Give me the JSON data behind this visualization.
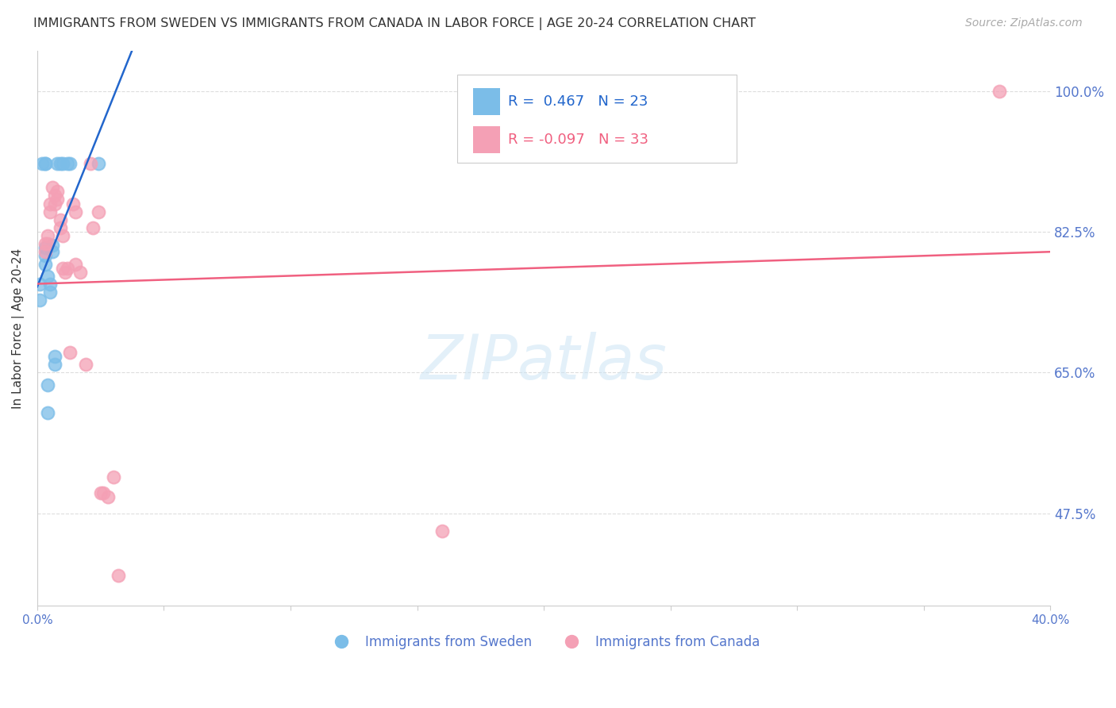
{
  "title": "IMMIGRANTS FROM SWEDEN VS IMMIGRANTS FROM CANADA IN LABOR FORCE | AGE 20-24 CORRELATION CHART",
  "source": "Source: ZipAtlas.com",
  "ylabel": "In Labor Force | Age 20-24",
  "sweden_R": 0.467,
  "sweden_N": 23,
  "canada_R": -0.097,
  "canada_N": 33,
  "sweden_color": "#7bbde8",
  "canada_color": "#f4a0b5",
  "sweden_line_color": "#2266cc",
  "canada_line_color": "#f06080",
  "legend_label_sweden": "Immigrants from Sweden",
  "legend_label_canada": "Immigrants from Canada",
  "xlim": [
    0.0,
    0.4
  ],
  "ylim": [
    0.36,
    1.05
  ],
  "yticks": [
    0.475,
    0.65,
    0.825,
    1.0
  ],
  "ytick_labels": [
    "47.5%",
    "65.0%",
    "82.5%",
    "100.0%"
  ],
  "xticks": [
    0.0,
    0.05,
    0.1,
    0.15,
    0.2,
    0.25,
    0.3,
    0.35,
    0.4
  ],
  "background_color": "#ffffff",
  "grid_color": "#dddddd",
  "axis_label_color": "#5577cc",
  "sweden_x": [
    0.001,
    0.001,
    0.002,
    0.003,
    0.003,
    0.003,
    0.003,
    0.003,
    0.004,
    0.004,
    0.004,
    0.005,
    0.005,
    0.006,
    0.006,
    0.007,
    0.007,
    0.008,
    0.009,
    0.01,
    0.012,
    0.013,
    0.024
  ],
  "sweden_y": [
    0.76,
    0.74,
    0.91,
    0.91,
    0.91,
    0.805,
    0.795,
    0.785,
    0.77,
    0.635,
    0.6,
    0.76,
    0.75,
    0.808,
    0.8,
    0.67,
    0.66,
    0.91,
    0.91,
    0.91,
    0.91,
    0.91,
    0.91
  ],
  "canada_x": [
    0.003,
    0.003,
    0.004,
    0.004,
    0.005,
    0.005,
    0.006,
    0.007,
    0.007,
    0.008,
    0.008,
    0.009,
    0.009,
    0.01,
    0.01,
    0.011,
    0.012,
    0.013,
    0.014,
    0.015,
    0.015,
    0.017,
    0.019,
    0.021,
    0.022,
    0.024,
    0.025,
    0.026,
    0.028,
    0.03,
    0.032,
    0.16,
    0.38
  ],
  "canada_y": [
    0.81,
    0.8,
    0.82,
    0.81,
    0.86,
    0.85,
    0.88,
    0.87,
    0.86,
    0.875,
    0.865,
    0.84,
    0.83,
    0.82,
    0.78,
    0.775,
    0.78,
    0.675,
    0.86,
    0.85,
    0.785,
    0.775,
    0.66,
    0.91,
    0.83,
    0.85,
    0.5,
    0.5,
    0.495,
    0.52,
    0.398,
    0.453,
    1.0
  ]
}
